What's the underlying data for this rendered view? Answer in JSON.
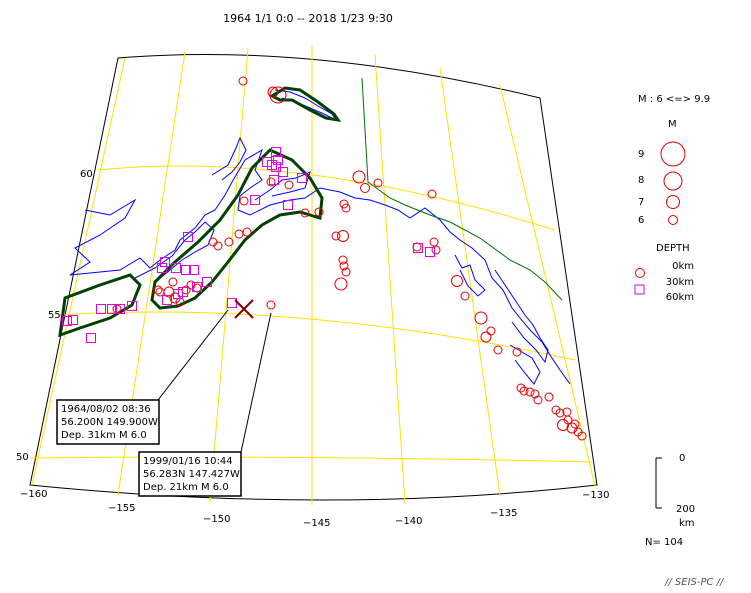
{
  "title": "1964 1/1 0:0 -- 2018 1/23 9:30",
  "lat_labels": [
    "60",
    "55",
    "50"
  ],
  "lon_labels": [
    "−160",
    "−155",
    "−150",
    "−145",
    "−140",
    "−135",
    "−130"
  ],
  "legend": {
    "magnitude_range": "M : 6 <=> 9.9",
    "m_title": "M",
    "m_items": [
      "9",
      "8",
      "7",
      "6"
    ],
    "depth_title": "DEPTH",
    "depth_items": [
      "0km",
      "30km",
      "60km"
    ],
    "scale_top": "0",
    "scale_bottom": "200",
    "scale_unit": "km",
    "count": "N= 104"
  },
  "annotations": [
    {
      "lines": [
        "1964/08/02 08:36",
        "56.200N  149.900W",
        "Dep. 31km    M 6.0"
      ]
    },
    {
      "lines": [
        "1999/01/16 10:44",
        "56.283N  147.427W",
        "Dep. 21km    M 6.0"
      ]
    }
  ],
  "credit": "// SEIS-PC //",
  "colors": {
    "shallow": "#e60000",
    "deep": "#e600e6",
    "coast": "#0000ff",
    "grid": "#ffe000",
    "region": "#004000",
    "border": "#007000"
  }
}
